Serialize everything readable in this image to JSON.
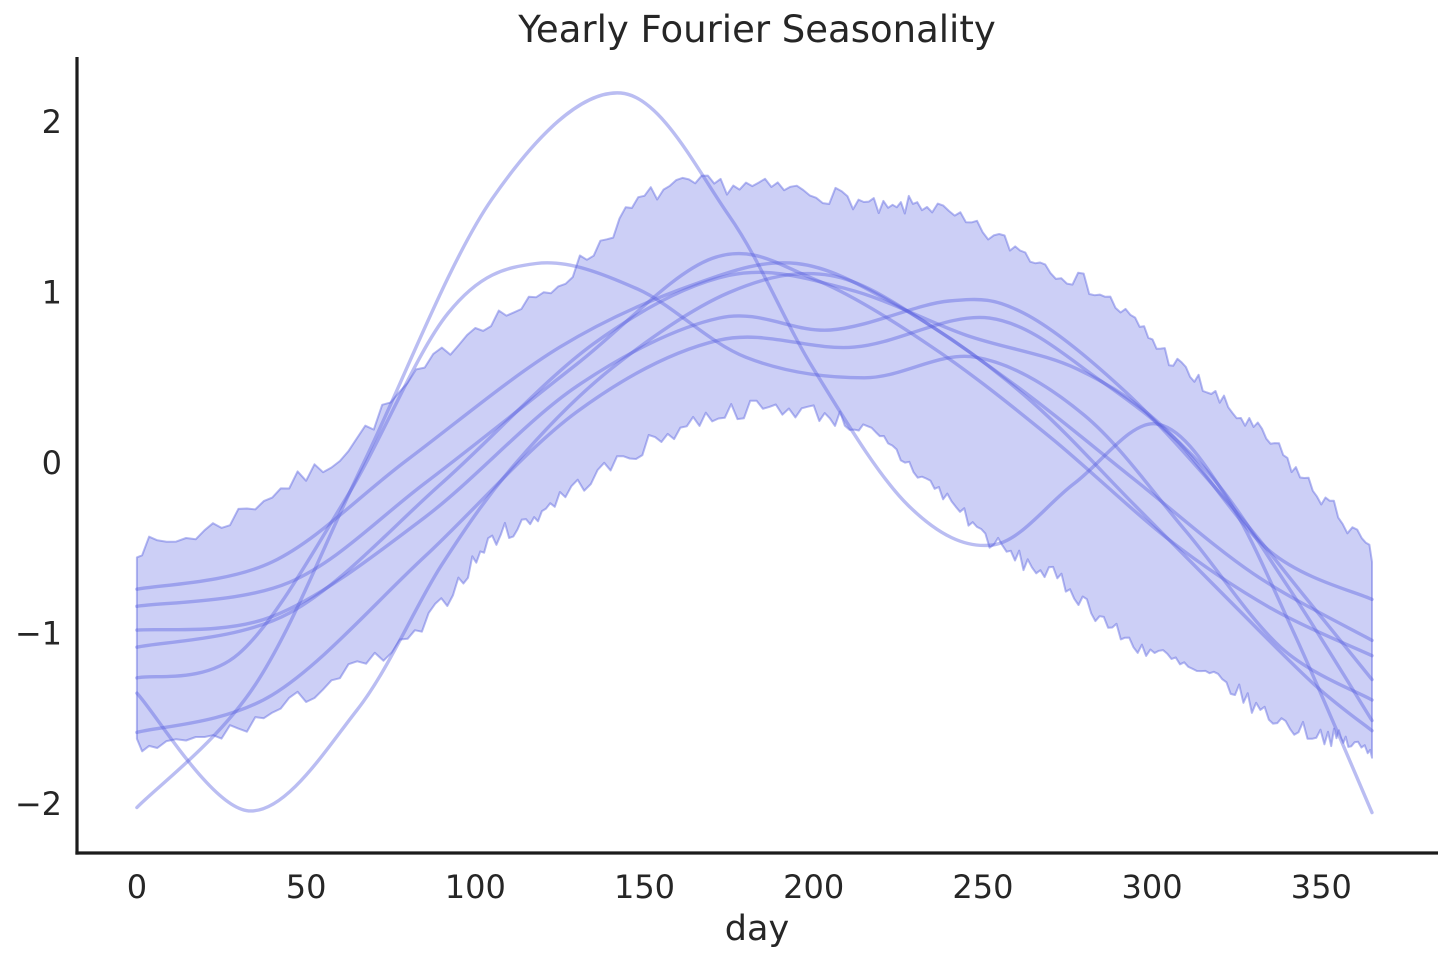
{
  "chart_data": {
    "type": "line",
    "title": "Yearly Fourier Seasonality",
    "xlabel": "day",
    "ylabel": "",
    "grid": false,
    "legend": null,
    "xlim": [
      -17.7,
      384.5
    ],
    "ylim": [
      -2.287,
      2.381
    ],
    "x_ticks": [
      0,
      50,
      100,
      150,
      200,
      250,
      300,
      350
    ],
    "x_tick_labels": [
      "0",
      "50",
      "100",
      "150",
      "200",
      "250",
      "300",
      "350"
    ],
    "y_ticks": [
      2,
      1,
      0,
      -1,
      -2
    ],
    "y_tick_labels": [
      "2",
      "1",
      "0",
      "−1",
      "−2"
    ],
    "colors": {
      "line": "#5a62e0",
      "line_alpha": 0.42,
      "band_fill": "#5a64e1",
      "band_fill_alpha": 0.31,
      "band_edge_alpha": 0.45,
      "axis": "#1c1c1c",
      "text": "#262626"
    },
    "band": {
      "name": "credible-interval",
      "edge_noise": 0.055,
      "upper": [
        [
          0,
          -0.5
        ],
        [
          20,
          -0.4
        ],
        [
          40,
          -0.18
        ],
        [
          60,
          0.05
        ],
        [
          80,
          0.45
        ],
        [
          100,
          0.8
        ],
        [
          118,
          0.95
        ],
        [
          135,
          1.25
        ],
        [
          150,
          1.55
        ],
        [
          165,
          1.63
        ],
        [
          180,
          1.62
        ],
        [
          195,
          1.6
        ],
        [
          210,
          1.55
        ],
        [
          222,
          1.48
        ],
        [
          232,
          1.52
        ],
        [
          245,
          1.4
        ],
        [
          258,
          1.28
        ],
        [
          270,
          1.15
        ],
        [
          283,
          1.02
        ],
        [
          295,
          0.82
        ],
        [
          305,
          0.62
        ],
        [
          315,
          0.45
        ],
        [
          325,
          0.28
        ],
        [
          335,
          0.12
        ],
        [
          345,
          -0.1
        ],
        [
          355,
          -0.3
        ],
        [
          365,
          -0.55
        ]
      ],
      "lower": [
        [
          0,
          -1.67
        ],
        [
          20,
          -1.62
        ],
        [
          40,
          -1.47
        ],
        [
          60,
          -1.25
        ],
        [
          80,
          -1.05
        ],
        [
          95,
          -0.7
        ],
        [
          105,
          -0.45
        ],
        [
          115,
          -0.35
        ],
        [
          125,
          -0.2
        ],
        [
          140,
          -0.02
        ],
        [
          155,
          0.15
        ],
        [
          170,
          0.28
        ],
        [
          185,
          0.32
        ],
        [
          200,
          0.3
        ],
        [
          212,
          0.22
        ],
        [
          222,
          0.1
        ],
        [
          232,
          -0.08
        ],
        [
          242,
          -0.25
        ],
        [
          252,
          -0.45
        ],
        [
          262,
          -0.58
        ],
        [
          272,
          -0.68
        ],
        [
          282,
          -0.85
        ],
        [
          292,
          -1.03
        ],
        [
          302,
          -1.12
        ],
        [
          312,
          -1.22
        ],
        [
          322,
          -1.3
        ],
        [
          332,
          -1.45
        ],
        [
          342,
          -1.55
        ],
        [
          352,
          -1.6
        ],
        [
          358,
          -1.64
        ],
        [
          365,
          -1.7
        ]
      ]
    },
    "series": [
      {
        "name": "posterior-sample-1",
        "points": [
          [
            0,
            -2.02
          ],
          [
            35,
            -1.3
          ],
          [
            67,
            0.0
          ],
          [
            105,
            1.55
          ],
          [
            143,
            2.17
          ],
          [
            175,
            1.45
          ],
          [
            200,
            0.55
          ],
          [
            228,
            -0.25
          ],
          [
            253,
            -0.48
          ],
          [
            277,
            -0.12
          ],
          [
            301,
            0.23
          ],
          [
            322,
            -0.2
          ],
          [
            342,
            -1.0
          ],
          [
            365,
            -2.05
          ]
        ]
      },
      {
        "name": "posterior-sample-2",
        "points": [
          [
            0,
            -1.35
          ],
          [
            33,
            -2.04
          ],
          [
            65,
            -1.45
          ],
          [
            90,
            -0.6
          ],
          [
            112,
            0.0
          ],
          [
            140,
            0.55
          ],
          [
            175,
            1.0
          ],
          [
            205,
            1.1
          ],
          [
            235,
            0.8
          ],
          [
            265,
            0.35
          ],
          [
            295,
            -0.25
          ],
          [
            325,
            -0.85
          ],
          [
            348,
            -1.3
          ],
          [
            365,
            -1.57
          ]
        ]
      },
      {
        "name": "posterior-sample-3",
        "points": [
          [
            0,
            -1.26
          ],
          [
            30,
            -1.12
          ],
          [
            62,
            -0.2
          ],
          [
            92,
            0.88
          ],
          [
            118,
            1.17
          ],
          [
            148,
            1.02
          ],
          [
            180,
            0.62
          ],
          [
            215,
            0.5
          ],
          [
            248,
            0.62
          ],
          [
            280,
            0.28
          ],
          [
            310,
            -0.4
          ],
          [
            338,
            -1.08
          ],
          [
            365,
            -1.39
          ]
        ]
      },
      {
        "name": "posterior-sample-4",
        "points": [
          [
            0,
            -0.74
          ],
          [
            40,
            -0.58
          ],
          [
            80,
            0.02
          ],
          [
            125,
            0.68
          ],
          [
            165,
            1.05
          ],
          [
            195,
            1.17
          ],
          [
            225,
            0.92
          ],
          [
            260,
            0.45
          ],
          [
            295,
            -0.1
          ],
          [
            330,
            -0.65
          ],
          [
            365,
            -1.04
          ]
        ]
      },
      {
        "name": "posterior-sample-5",
        "points": [
          [
            0,
            -0.84
          ],
          [
            45,
            -0.7
          ],
          [
            85,
            -0.12
          ],
          [
            130,
            0.58
          ],
          [
            170,
            1.2
          ],
          [
            200,
            1.08
          ],
          [
            235,
            0.68
          ],
          [
            270,
            0.15
          ],
          [
            305,
            -0.45
          ],
          [
            335,
            -0.85
          ],
          [
            365,
            -1.13
          ]
        ]
      },
      {
        "name": "posterior-sample-6",
        "points": [
          [
            0,
            -0.98
          ],
          [
            40,
            -0.9
          ],
          [
            85,
            -0.32
          ],
          [
            130,
            0.45
          ],
          [
            172,
            0.85
          ],
          [
            205,
            0.78
          ],
          [
            240,
            0.95
          ],
          [
            262,
            0.88
          ],
          [
            292,
            0.42
          ],
          [
            322,
            -0.22
          ],
          [
            345,
            -0.78
          ],
          [
            365,
            -1.27
          ]
        ]
      },
      {
        "name": "posterior-sample-7",
        "points": [
          [
            0,
            -1.08
          ],
          [
            45,
            -0.88
          ],
          [
            90,
            -0.12
          ],
          [
            135,
            0.7
          ],
          [
            175,
            1.1
          ],
          [
            210,
            1.02
          ],
          [
            245,
            0.75
          ],
          [
            278,
            0.55
          ],
          [
            305,
            0.18
          ],
          [
            335,
            -0.52
          ],
          [
            365,
            -0.8
          ]
        ]
      },
      {
        "name": "posterior-sample-8",
        "points": [
          [
            0,
            -1.58
          ],
          [
            40,
            -1.36
          ],
          [
            85,
            -0.55
          ],
          [
            130,
            0.3
          ],
          [
            172,
            0.72
          ],
          [
            212,
            0.68
          ],
          [
            252,
            0.85
          ],
          [
            285,
            0.48
          ],
          [
            315,
            -0.02
          ],
          [
            340,
            -0.72
          ],
          [
            365,
            -1.51
          ]
        ]
      }
    ]
  },
  "layout_text": {
    "title": "Yearly Fourier Seasonality",
    "xlabel": "day"
  }
}
